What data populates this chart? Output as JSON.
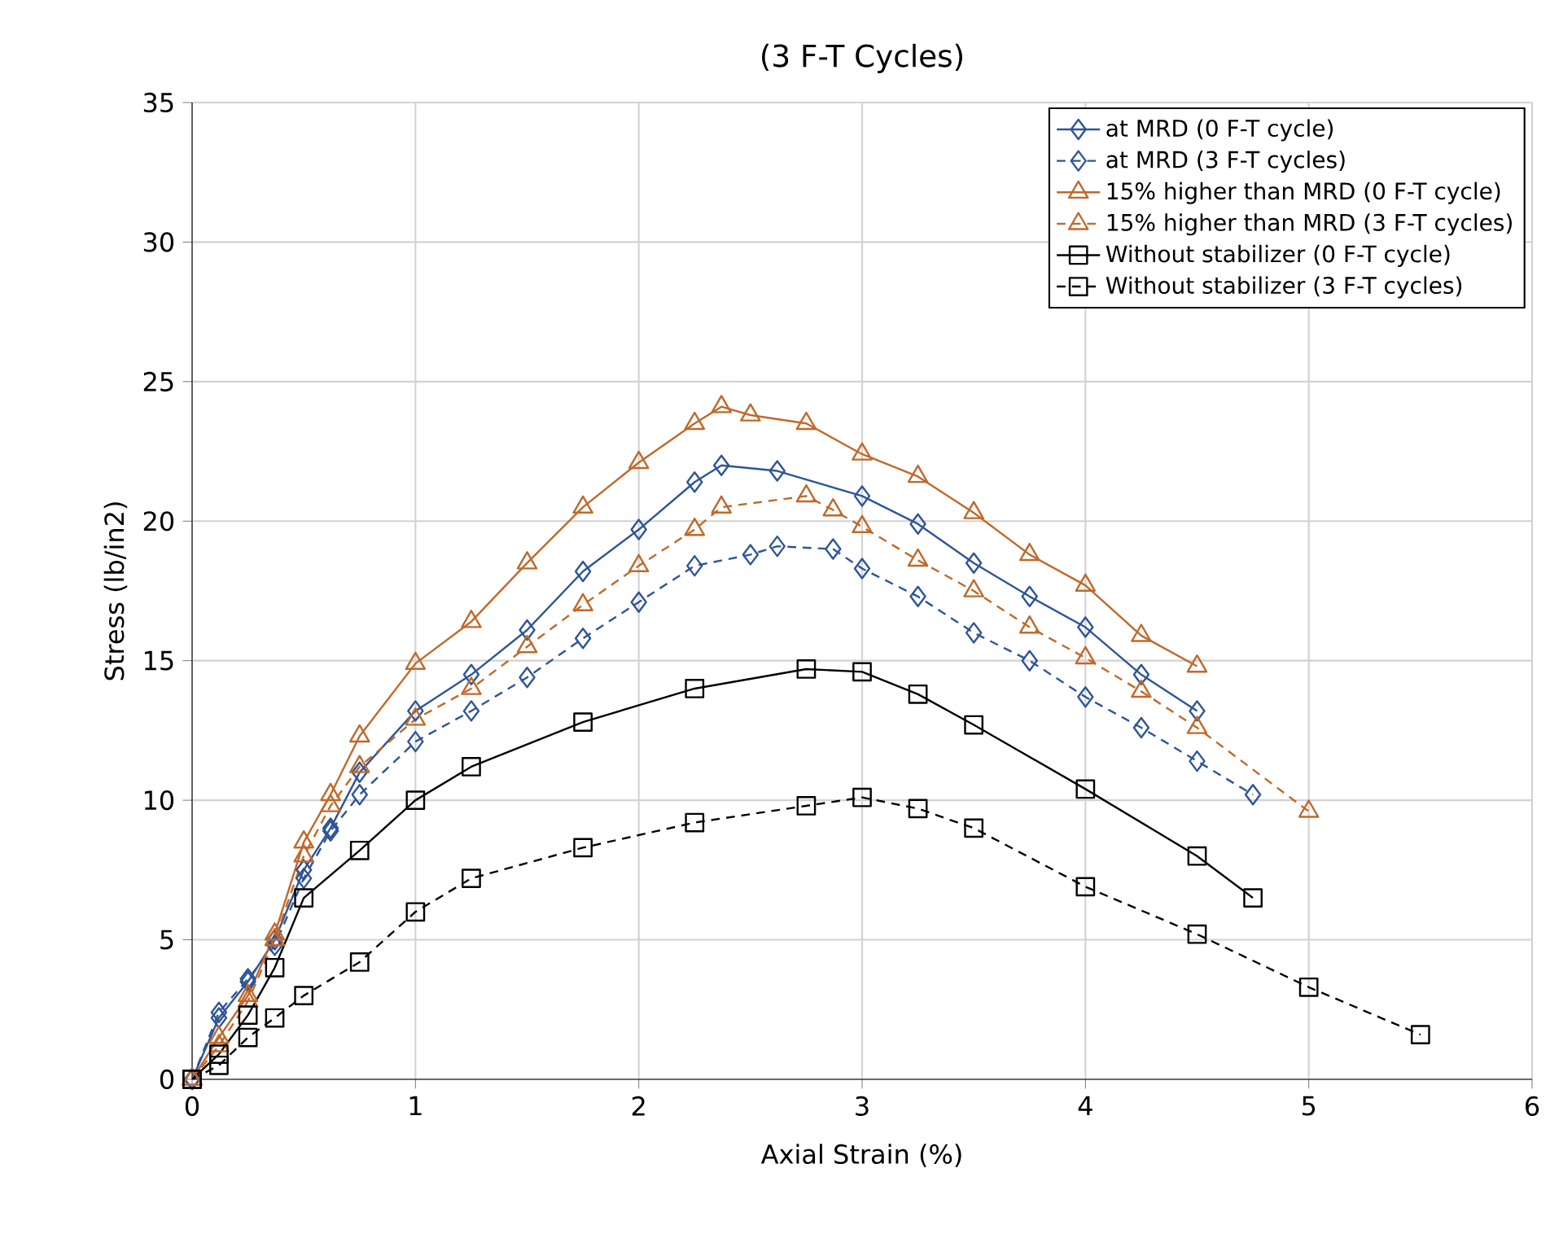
{
  "chart_data": {
    "type": "line",
    "title": "(3 F-T Cycles)",
    "xlabel": "Axial Strain (%)",
    "ylabel": "Stress (lb/in2)",
    "xlim": [
      0,
      6
    ],
    "ylim": [
      0,
      35
    ],
    "xticks": [
      0,
      1,
      2,
      3,
      4,
      5,
      6
    ],
    "yticks": [
      0,
      5,
      10,
      15,
      20,
      25,
      30,
      35
    ],
    "grid": true,
    "legend": "top right",
    "series": [
      {
        "name": "at MRD (0 F-T cycle)",
        "color": "#2e5597",
        "marker": "diamond",
        "line_style": "solid",
        "x": [
          0,
          0.12,
          0.25,
          0.37,
          0.5,
          0.62,
          0.75,
          1,
          1.25,
          1.5,
          1.75,
          2,
          2.25,
          2.37,
          2.62,
          3,
          3.25,
          3.5,
          3.75,
          4,
          4.25,
          4.5
        ],
        "values": [
          0,
          2.2,
          3.5,
          5,
          7.5,
          9,
          11,
          13.2,
          14.5,
          16.1,
          18.2,
          19.7,
          21.4,
          22,
          21.8,
          20.9,
          19.9,
          18.5,
          17.3,
          16.2,
          14.5,
          13.2
        ]
      },
      {
        "name": "at MRD (3 F-T cycles)",
        "color": "#2e5597",
        "marker": "diamond",
        "line_style": "dashed",
        "x": [
          0,
          0.12,
          0.25,
          0.37,
          0.5,
          0.62,
          0.75,
          1,
          1.25,
          1.5,
          1.75,
          2,
          2.25,
          2.5,
          2.62,
          2.87,
          3,
          3.25,
          3.5,
          3.75,
          4,
          4.25,
          4.5,
          4.75
        ],
        "values": [
          0,
          2.4,
          3.6,
          4.8,
          7.2,
          8.9,
          10.2,
          12.1,
          13.2,
          14.4,
          15.8,
          17.1,
          18.4,
          18.8,
          19.1,
          19,
          18.3,
          17.3,
          16,
          15,
          13.7,
          12.6,
          11.4,
          10.2
        ]
      },
      {
        "name": "15% higher than MRD (0 F-T cycle)",
        "color": "#c0692a",
        "marker": "triangle",
        "line_style": "solid",
        "x": [
          0,
          0.12,
          0.25,
          0.37,
          0.5,
          0.62,
          0.75,
          1,
          1.25,
          1.5,
          1.75,
          2,
          2.25,
          2.37,
          2.5,
          2.75,
          3,
          3.25,
          3.5,
          3.75,
          4,
          4.25,
          4.5
        ],
        "values": [
          0,
          1.5,
          3,
          5.2,
          8.5,
          10.2,
          12.3,
          14.9,
          16.4,
          18.5,
          20.5,
          22.1,
          23.5,
          24.1,
          23.8,
          23.5,
          22.4,
          21.6,
          20.3,
          18.8,
          17.7,
          15.9,
          14.8
        ]
      },
      {
        "name": "15% higher than MRD (3 F-T cycles)",
        "color": "#c0692a",
        "marker": "triangle",
        "line_style": "dashed",
        "x": [
          0,
          0.12,
          0.25,
          0.37,
          0.5,
          0.62,
          0.75,
          1,
          1.25,
          1.5,
          1.75,
          2,
          2.25,
          2.37,
          2.75,
          2.87,
          3,
          3.25,
          3.5,
          3.75,
          4,
          4.25,
          4.5,
          5
        ],
        "values": [
          0,
          1.2,
          2.8,
          5,
          8,
          9.8,
          11.2,
          12.9,
          14,
          15.5,
          17,
          18.4,
          19.7,
          20.5,
          20.9,
          20.4,
          19.8,
          18.6,
          17.5,
          16.2,
          15.1,
          13.9,
          12.6,
          9.6
        ]
      },
      {
        "name": "Without stabilizer (0 F-T cycle)",
        "color": "#000000",
        "marker": "square",
        "line_style": "solid",
        "x": [
          0,
          0.12,
          0.25,
          0.37,
          0.5,
          0.75,
          1,
          1.25,
          1.75,
          2.25,
          2.75,
          3,
          3.25,
          3.5,
          4,
          4.5,
          4.75
        ],
        "values": [
          0,
          0.9,
          2.3,
          4,
          6.5,
          8.2,
          10,
          11.2,
          12.8,
          14,
          14.7,
          14.6,
          13.8,
          12.7,
          10.4,
          8,
          6.5
        ]
      },
      {
        "name": "Without stabilizer (3 F-T cycles)",
        "color": "#000000",
        "marker": "square",
        "line_style": "dashed",
        "x": [
          0,
          0.12,
          0.25,
          0.37,
          0.5,
          0.75,
          1,
          1.25,
          1.75,
          2.25,
          2.75,
          3,
          3.25,
          3.5,
          4,
          4.5,
          5,
          5.5
        ],
        "values": [
          0,
          0.5,
          1.5,
          2.2,
          3,
          4.2,
          6,
          7.2,
          8.3,
          9.2,
          9.8,
          10.1,
          9.7,
          9,
          6.9,
          5.2,
          3.3,
          1.6
        ]
      }
    ]
  }
}
